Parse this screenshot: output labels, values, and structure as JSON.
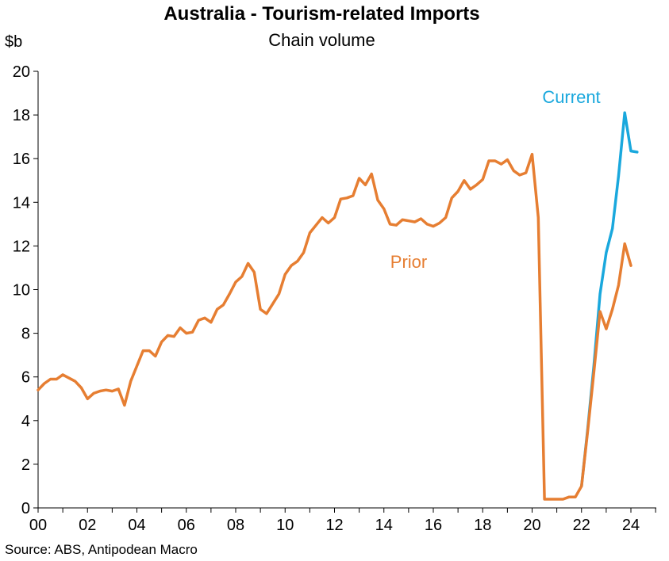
{
  "chart_data": {
    "type": "line",
    "title": "Australia - Tourism-related Imports",
    "subtitle": "Chain volume",
    "ylabel": "$b",
    "source": "Source: ABS, Antipodean Macro",
    "ylim": [
      0,
      20
    ],
    "y_ticks": [
      "0",
      "2",
      "4",
      "6",
      "8",
      "10",
      "12",
      "14",
      "16",
      "18",
      "20"
    ],
    "x_ticks": [
      "00",
      "02",
      "04",
      "06",
      "08",
      "10",
      "12",
      "14",
      "16",
      "18",
      "20",
      "22",
      "24"
    ],
    "x_range": [
      2000.0,
      2025.0
    ],
    "grid": false,
    "series": [
      {
        "name": "Prior",
        "color": "#E67E32",
        "x": [
          2000.0,
          2000.25,
          2000.5,
          2000.75,
          2001.0,
          2001.25,
          2001.5,
          2001.75,
          2002.0,
          2002.25,
          2002.5,
          2002.75,
          2003.0,
          2003.25,
          2003.5,
          2003.75,
          2004.0,
          2004.25,
          2004.5,
          2004.75,
          2005.0,
          2005.25,
          2005.5,
          2005.75,
          2006.0,
          2006.25,
          2006.5,
          2006.75,
          2007.0,
          2007.25,
          2007.5,
          2007.75,
          2008.0,
          2008.25,
          2008.5,
          2008.75,
          2009.0,
          2009.25,
          2009.5,
          2009.75,
          2010.0,
          2010.25,
          2010.5,
          2010.75,
          2011.0,
          2011.25,
          2011.5,
          2011.75,
          2012.0,
          2012.25,
          2012.5,
          2012.75,
          2013.0,
          2013.25,
          2013.5,
          2013.75,
          2014.0,
          2014.25,
          2014.5,
          2014.75,
          2015.0,
          2015.25,
          2015.5,
          2015.75,
          2016.0,
          2016.25,
          2016.5,
          2016.75,
          2017.0,
          2017.25,
          2017.5,
          2017.75,
          2018.0,
          2018.25,
          2018.5,
          2018.75,
          2019.0,
          2019.25,
          2019.5,
          2019.75,
          2020.0,
          2020.25,
          2020.5,
          2020.75,
          2021.0,
          2021.25,
          2021.5,
          2021.75,
          2022.0,
          2022.25,
          2022.5,
          2022.75,
          2023.0,
          2023.25,
          2023.5,
          2023.75,
          2024.0
        ],
        "values": [
          5.4,
          5.7,
          5.9,
          5.9,
          6.1,
          5.95,
          5.8,
          5.5,
          5.0,
          5.25,
          5.35,
          5.4,
          5.35,
          5.45,
          4.7,
          5.8,
          6.5,
          7.2,
          7.2,
          6.95,
          7.6,
          7.9,
          7.85,
          8.25,
          8.0,
          8.05,
          8.6,
          8.7,
          8.5,
          9.1,
          9.3,
          9.8,
          10.35,
          10.6,
          11.2,
          10.8,
          9.1,
          8.9,
          9.35,
          9.8,
          10.7,
          11.1,
          11.3,
          11.7,
          12.6,
          12.95,
          13.3,
          13.05,
          13.3,
          14.15,
          14.2,
          14.3,
          15.1,
          14.8,
          15.3,
          14.1,
          13.7,
          13.0,
          12.95,
          13.2,
          13.15,
          13.1,
          13.25,
          13.0,
          12.9,
          13.05,
          13.3,
          14.2,
          14.5,
          15.0,
          14.6,
          14.8,
          15.05,
          15.9,
          15.9,
          15.75,
          15.95,
          15.45,
          15.25,
          15.35,
          16.2,
          13.3,
          0.4,
          0.4,
          0.4,
          0.4,
          0.5,
          0.5,
          1.0,
          3.5,
          6.2,
          9.0,
          8.2,
          9.1,
          10.2,
          12.1,
          11.1
        ]
      },
      {
        "name": "Current",
        "color": "#1AA8DD",
        "x": [
          2022.0,
          2022.25,
          2022.5,
          2022.75,
          2023.0,
          2023.25,
          2023.5,
          2023.75,
          2024.0,
          2024.25
        ],
        "values": [
          1.0,
          3.6,
          6.5,
          9.8,
          11.7,
          12.8,
          15.2,
          18.1,
          16.35,
          16.3
        ]
      }
    ],
    "annotations": [
      {
        "text": "Current",
        "color": "#1AA8DD"
      },
      {
        "text": "Prior",
        "color": "#E67E32"
      }
    ]
  }
}
